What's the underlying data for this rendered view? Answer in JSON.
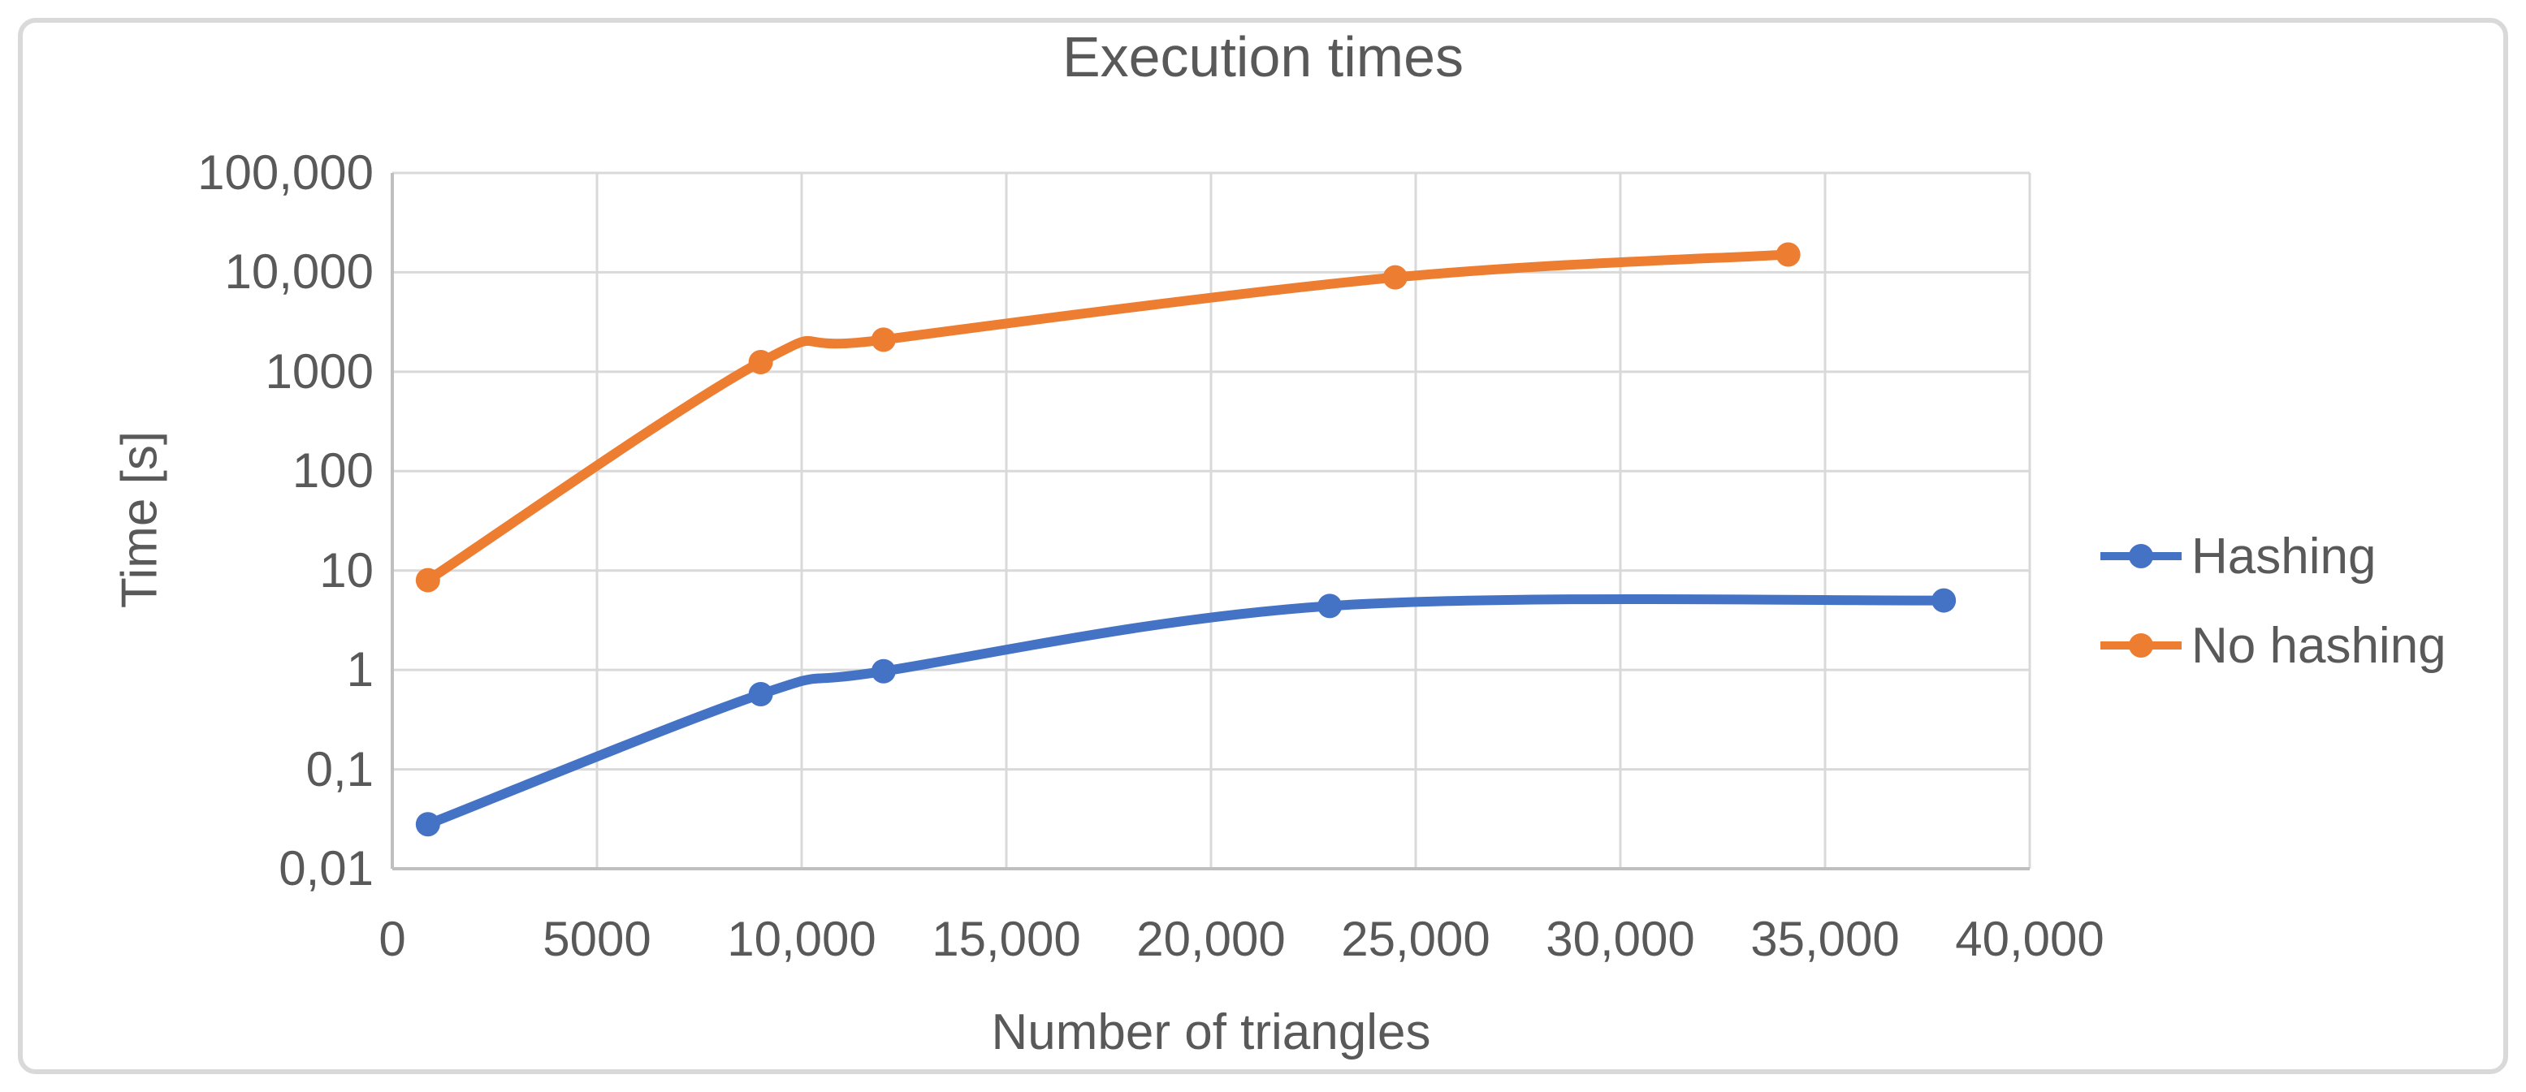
{
  "chart_data": {
    "type": "line",
    "title": "Execution times",
    "xlabel": "Number of triangles",
    "ylabel": "Time [s]",
    "grid": true,
    "legend_position": "right",
    "x_axis": {
      "min": 0,
      "max": 40000,
      "tick_values": [
        0,
        5000,
        10000,
        15000,
        20000,
        25000,
        30000,
        35000,
        40000
      ],
      "tick_labels": [
        "0",
        "5000",
        "10,000",
        "15,000",
        "20,000",
        "25,000",
        "30,000",
        "35,000",
        "40,000"
      ]
    },
    "y_axis": {
      "scale": "log",
      "min": 0.01,
      "max": 100000,
      "tick_values": [
        100000,
        10000,
        1000,
        100,
        10,
        1,
        0.1,
        0.01
      ],
      "tick_labels": [
        "100,000",
        "10,000",
        "1000",
        "100",
        "10",
        "1",
        "0,1",
        "0,01"
      ]
    },
    "series": [
      {
        "name": "Hashing",
        "color": "#4472C4",
        "x": [
          870,
          9000,
          12000,
          22900,
          37900
        ],
        "y": [
          0.028,
          0.57,
          0.97,
          4.4,
          5.0
        ]
      },
      {
        "name": "No hashing",
        "color": "#ED7D31",
        "x": [
          870,
          9000,
          12000,
          24500,
          34100
        ],
        "y": [
          8,
          1250,
          2100,
          8900,
          15100
        ]
      }
    ],
    "colors": {
      "text": "#595959",
      "gridline": "#D9D9D9",
      "axis_line": "#BFBFBF",
      "background": "#FFFFFF",
      "frame_border": "#D9D9D9"
    }
  }
}
